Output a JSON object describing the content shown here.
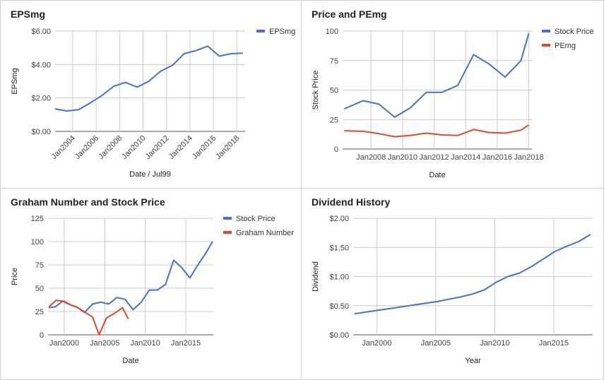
{
  "chart_data": [
    {
      "type": "line",
      "title": "EPSmg",
      "xlabel": "Date / Jul99",
      "ylabel": "EPSmg",
      "x_type": "year",
      "xlim": [
        2002.5,
        2018.7
      ],
      "ylim": [
        0,
        6
      ],
      "xticks": [
        2004,
        2006,
        2008,
        2010,
        2012,
        2014,
        2016,
        2018
      ],
      "xtick_labels": [
        "Jan2004",
        "Jan2006",
        "Jan2008",
        "Jan2010",
        "Jan2012",
        "Jan2014",
        "Jan2016",
        "Jan2018"
      ],
      "xtick_rotation": -45,
      "yticks": [
        0,
        2,
        4,
        6
      ],
      "ytick_labels": [
        "$0.00",
        "$2.00",
        "$4.00",
        "$6.00"
      ],
      "grid": true,
      "legend_position": "top-right",
      "series": [
        {
          "name": "EPSmg",
          "color": "#4a6fcf",
          "x": [
            2002.5,
            2003.5,
            2004.5,
            2005.5,
            2006.5,
            2007.5,
            2008.5,
            2009.5,
            2010.5,
            2011.5,
            2012.5,
            2013.5,
            2014.5,
            2015.5,
            2016.5,
            2017.5,
            2018.5
          ],
          "y": [
            1.35,
            1.22,
            1.3,
            1.7,
            2.15,
            2.7,
            2.93,
            2.65,
            3.0,
            3.6,
            3.95,
            4.65,
            4.83,
            5.1,
            4.5,
            4.65,
            4.68
          ]
        }
      ]
    },
    {
      "type": "line",
      "title": "Price and PEmg",
      "xlabel": "Date",
      "ylabel": "Stock Price",
      "x_type": "year",
      "xlim": [
        2006.2,
        2018.2
      ],
      "ylim": [
        0,
        100
      ],
      "xticks": [
        2008,
        2010,
        2012,
        2014,
        2016,
        2018
      ],
      "xtick_labels": [
        "Jan2008",
        "Jan2010",
        "Jan2012",
        "Jan2014",
        "Jan2016",
        "Jan2018"
      ],
      "xtick_rotation": 0,
      "yticks": [
        0,
        25,
        50,
        75,
        100
      ],
      "ytick_labels": [
        "0",
        "25",
        "50",
        "75",
        "100"
      ],
      "grid": true,
      "legend_position": "top-right",
      "series": [
        {
          "name": "Stock Price",
          "color": "#4a6fcf",
          "x": [
            2006.3,
            2007.5,
            2008.5,
            2009.5,
            2010.5,
            2011.5,
            2012.5,
            2013.5,
            2014.5,
            2015.5,
            2016.5,
            2017.5,
            2018.0
          ],
          "y": [
            34,
            41,
            38,
            27,
            35,
            48,
            48,
            54,
            80,
            72,
            61,
            75,
            98
          ]
        },
        {
          "name": "PEmg",
          "color": "#dc4b2c",
          "x": [
            2006.3,
            2007.5,
            2008.5,
            2009.5,
            2010.5,
            2011.5,
            2012.5,
            2013.5,
            2014.5,
            2015.5,
            2016.5,
            2017.5,
            2018.0
          ],
          "y": [
            15.5,
            15,
            13,
            10.5,
            11.5,
            13.5,
            12,
            11.5,
            16.5,
            14,
            13.5,
            16,
            20.5
          ]
        }
      ]
    },
    {
      "type": "line",
      "title": "Graham Number and Stock Price",
      "xlabel": "Date",
      "ylabel": "Price",
      "x_type": "year",
      "xlim": [
        1998,
        2018.4
      ],
      "ylim": [
        0,
        125
      ],
      "xticks": [
        2000,
        2005,
        2010,
        2015
      ],
      "xtick_labels": [
        "Jan2000",
        "Jan2005",
        "Jan2010",
        "Jan2015"
      ],
      "xtick_rotation": 0,
      "yticks": [
        0,
        25,
        50,
        75,
        100,
        125
      ],
      "ytick_labels": [
        "0",
        "25",
        "50",
        "75",
        "100",
        "125"
      ],
      "grid": true,
      "legend_position": "top-right",
      "series": [
        {
          "name": "Stock Price",
          "color": "#4a6fcf",
          "x": [
            1998.1,
            1998.9,
            1999.8,
            2000.5,
            2001.5,
            2002.5,
            2003.5,
            2004.5,
            2005.5,
            2006.5,
            2007.5,
            2008.5,
            2009.5,
            2010.5,
            2011.5,
            2012.5,
            2013.5,
            2014.5,
            2015.5,
            2016.5,
            2017.5,
            2018.3
          ],
          "y": [
            29,
            30,
            36,
            33,
            30,
            24,
            33,
            35,
            33,
            40,
            38,
            27,
            35,
            48,
            48,
            54,
            80,
            72,
            61,
            75,
            88,
            100
          ]
        },
        {
          "name": "Graham Number",
          "color": "#dc4b2c",
          "x": [
            1998.1,
            1999.0,
            2000.0,
            2000.8,
            2001.7,
            2002.6,
            2003.5,
            2004.3,
            2005.2,
            2006.2,
            2007.2,
            2007.9
          ],
          "y": [
            30,
            37,
            36,
            32,
            29,
            24,
            19,
            0,
            18,
            23,
            29,
            17
          ]
        }
      ]
    },
    {
      "type": "line",
      "title": "Dividend History",
      "xlabel": "Year",
      "ylabel": "Dividend",
      "x_type": "year",
      "xlim": [
        1998,
        2018.3
      ],
      "ylim": [
        0,
        2
      ],
      "xticks": [
        2000,
        2005,
        2010,
        2015
      ],
      "xtick_labels": [
        "Jan2000",
        "Jan2005",
        "Jan2010",
        "Jan2015"
      ],
      "xtick_rotation": 0,
      "yticks": [
        0,
        0.5,
        1,
        1.5,
        2
      ],
      "ytick_labels": [
        "$0.00",
        "$0.50",
        "$1.00",
        "$1.50",
        "$2.00"
      ],
      "grid": true,
      "legend_position": "none",
      "series": [
        {
          "name": "",
          "color": "#4a6fcf",
          "x": [
            1998.1,
            1999.1,
            2000.1,
            2001.1,
            2002.1,
            2003.1,
            2004.1,
            2005.1,
            2006.1,
            2007.1,
            2008.1,
            2009.1,
            2010.1,
            2011.1,
            2012.1,
            2013.1,
            2014.1,
            2015.1,
            2016.1,
            2017.1,
            2018.1
          ],
          "y": [
            0.36,
            0.39,
            0.42,
            0.45,
            0.48,
            0.51,
            0.54,
            0.57,
            0.61,
            0.65,
            0.7,
            0.77,
            0.9,
            1.0,
            1.06,
            1.17,
            1.3,
            1.43,
            1.52,
            1.6,
            1.72
          ]
        }
      ]
    }
  ]
}
